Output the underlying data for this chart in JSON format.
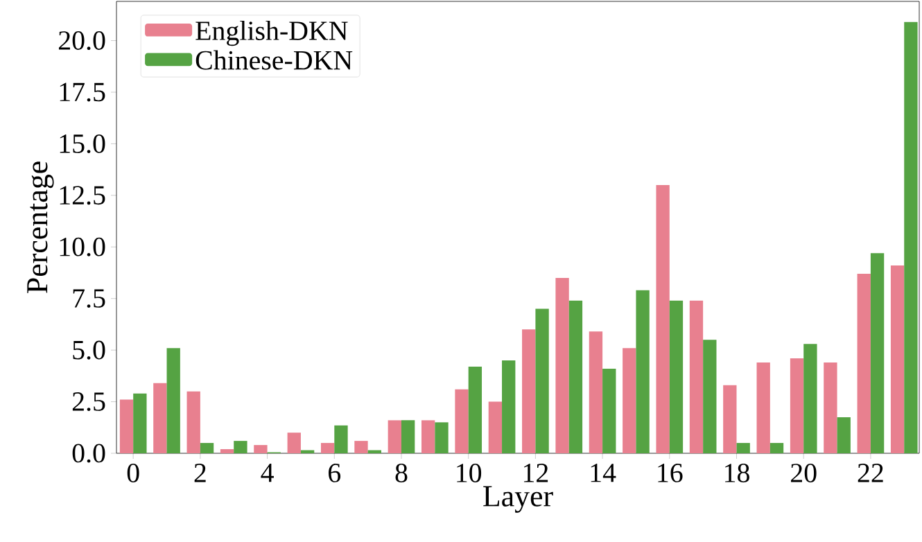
{
  "chart_data": {
    "type": "bar",
    "xlabel": "Layer",
    "ylabel": "Percentage",
    "x": [
      0,
      1,
      2,
      3,
      4,
      5,
      6,
      7,
      8,
      9,
      10,
      11,
      12,
      13,
      14,
      15,
      16,
      17,
      18,
      19,
      20,
      21,
      22,
      23
    ],
    "series": [
      {
        "name": "English-DKN",
        "color": "#e8808f",
        "values": [
          2.6,
          3.4,
          3.0,
          0.2,
          0.4,
          1.0,
          0.5,
          0.6,
          1.6,
          1.6,
          3.1,
          2.5,
          6.0,
          8.5,
          5.9,
          5.1,
          13.0,
          7.4,
          3.3,
          4.4,
          4.6,
          4.4,
          8.7,
          9.1
        ]
      },
      {
        "name": "Chinese-DKN",
        "color": "#55a343",
        "values": [
          2.9,
          5.1,
          0.5,
          0.6,
          0.05,
          0.15,
          1.35,
          0.15,
          1.6,
          1.5,
          4.2,
          4.5,
          7.0,
          7.4,
          4.1,
          7.9,
          7.4,
          5.5,
          0.5,
          0.5,
          5.3,
          1.75,
          9.7,
          20.9
        ]
      }
    ],
    "xlim": [
      -0.5,
      23.45
    ],
    "xticks": [
      0,
      2,
      4,
      6,
      8,
      10,
      12,
      14,
      16,
      18,
      20,
      22
    ],
    "ylim": [
      0,
      21.9
    ],
    "yticks": [
      {
        "value": 0,
        "label": "0.0"
      },
      {
        "value": 2.5,
        "label": "2.5"
      },
      {
        "value": 5,
        "label": "5.0"
      },
      {
        "value": 7.5,
        "label": "7.5"
      },
      {
        "value": 10,
        "label": "10.0"
      },
      {
        "value": 12.5,
        "label": "12.5"
      },
      {
        "value": 15,
        "label": "15.0"
      },
      {
        "value": 17.5,
        "label": "17.5"
      },
      {
        "value": 20,
        "label": "20.0"
      }
    ],
    "legend": "top left"
  }
}
